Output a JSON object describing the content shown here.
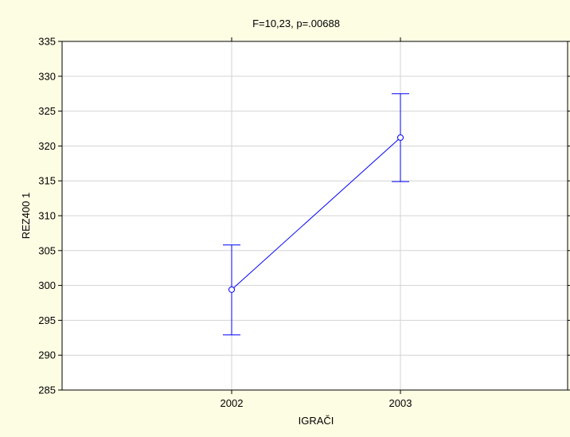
{
  "chart_data": {
    "type": "line",
    "title": "F=10,23, p=.00688",
    "xlabel": "IGRAČI",
    "ylabel": "REZ400 1",
    "categories": [
      "2002",
      "2003"
    ],
    "ylim": [
      285,
      335
    ],
    "yticks": [
      "285",
      "290",
      "295",
      "300",
      "305",
      "310",
      "315",
      "320",
      "325",
      "330",
      "335"
    ],
    "grid": true,
    "legend": "none",
    "series": [
      {
        "values": [
          299.4,
          321.2
        ],
        "error_lower": [
          292.9,
          314.9
        ],
        "error_upper": [
          305.8,
          327.5
        ],
        "color": "#0000ff",
        "marker": "circle"
      }
    ],
    "background_color": "#fdfde3",
    "plot_background_color": "#ffffff",
    "grid_color": "#d3d3d3"
  }
}
